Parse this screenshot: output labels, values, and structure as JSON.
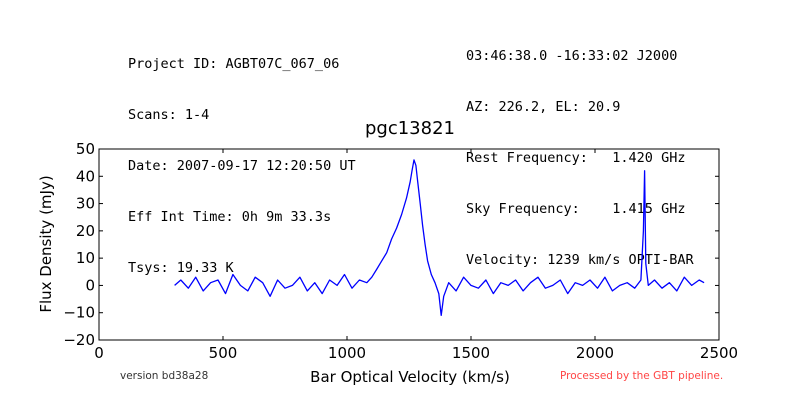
{
  "header": {
    "left_lines": [
      "Project ID: AGBT07C_067_06",
      "Scans: 1-4",
      "Date: 2007-09-17 12:20:50 UT",
      "Eff Int Time: 0h 9m 33.3s",
      "Tsys: 19.33 K"
    ],
    "right_lines": [
      "03:46:38.0 -16:33:02 J2000",
      "AZ: 226.2, EL: 20.9",
      "Rest Frequency:   1.420 GHz",
      "Sky Frequency:    1.415 GHz",
      "Velocity: 1239 km/s OPTI-BAR"
    ]
  },
  "footer": {
    "version": "version bd38a28",
    "pipeline": "Processed by the GBT pipeline.",
    "pipeline_color": "#ff4444"
  },
  "chart_data": {
    "type": "line",
    "title": "pgc13821",
    "xlabel": "Bar Optical Velocity (km/s)",
    "ylabel": "Flux Density (mJy)",
    "xlim": [
      0,
      2500
    ],
    "ylim": [
      -20,
      50
    ],
    "xticks": [
      0,
      500,
      1000,
      1500,
      2000,
      2500
    ],
    "yticks": [
      -20,
      -10,
      0,
      10,
      20,
      30,
      40,
      50
    ],
    "xtick_labels": [
      "0",
      "500",
      "1000",
      "1500",
      "2000",
      "2500"
    ],
    "ytick_labels": [
      "−20",
      "−10",
      "0",
      "10",
      "20",
      "30",
      "40",
      "50"
    ],
    "grid": false,
    "legend": "none",
    "series": [
      {
        "color": "#0000ff",
        "x": [
          305,
          330,
          360,
          390,
          420,
          450,
          480,
          510,
          540,
          570,
          600,
          630,
          660,
          690,
          720,
          750,
          780,
          810,
          840,
          870,
          900,
          930,
          960,
          990,
          1020,
          1050,
          1080,
          1100,
          1120,
          1140,
          1160,
          1180,
          1200,
          1220,
          1240,
          1255,
          1262,
          1270,
          1278,
          1285,
          1295,
          1305,
          1315,
          1325,
          1340,
          1355,
          1370,
          1380,
          1390,
          1410,
          1440,
          1470,
          1500,
          1530,
          1560,
          1590,
          1620,
          1650,
          1680,
          1710,
          1740,
          1770,
          1800,
          1830,
          1860,
          1890,
          1920,
          1950,
          1980,
          2010,
          2040,
          2070,
          2100,
          2130,
          2160,
          2185,
          2195,
          2200,
          2205,
          2215,
          2240,
          2270,
          2300,
          2330,
          2360,
          2390,
          2420,
          2440
        ],
        "y": [
          0,
          2,
          -1,
          3,
          -2,
          1,
          2,
          -3,
          4,
          0,
          -2,
          3,
          1,
          -4,
          2,
          -1,
          0,
          3,
          -2,
          1,
          -3,
          2,
          0,
          4,
          -1,
          2,
          1,
          3,
          6,
          9,
          12,
          17,
          21,
          26,
          32,
          38,
          42,
          46,
          44,
          38,
          30,
          22,
          15,
          9,
          4,
          1,
          -3,
          -11,
          -4,
          1,
          -2,
          3,
          0,
          -1,
          2,
          -3,
          1,
          0,
          2,
          -2,
          1,
          3,
          -1,
          0,
          2,
          -3,
          1,
          0,
          2,
          -1,
          3,
          -2,
          0,
          1,
          -1,
          2,
          20,
          42,
          8,
          0,
          2,
          -1,
          1,
          -2,
          3,
          0,
          2,
          1
        ]
      }
    ]
  }
}
